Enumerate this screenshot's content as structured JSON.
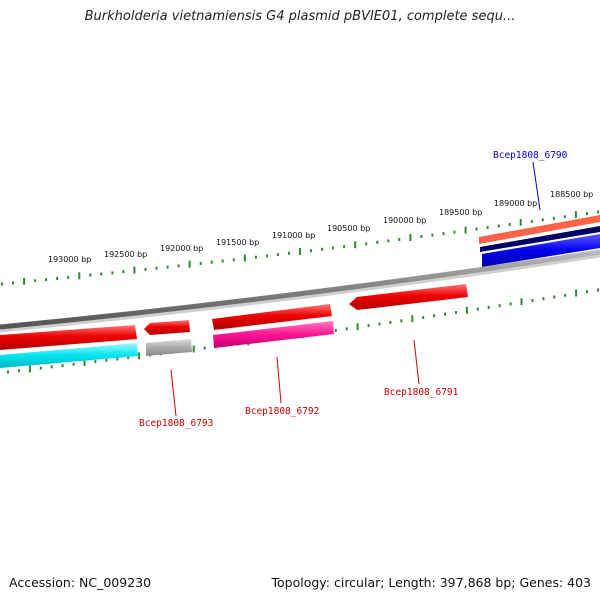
{
  "title": "Burkholderia vietnamiensis G4 plasmid pBVIE01, complete sequ...",
  "footer": {
    "accession": "Accession: NC_009230",
    "topology": "Topology: circular; Length: 397,868 bp; Genes: 403"
  },
  "tick_labels": [
    "193000 bp",
    "192500 bp",
    "192000 bp",
    "191500 bp",
    "191000 bp",
    "190500 bp",
    "190000 bp",
    "189500 bp",
    "189000 bp",
    "188500 bp"
  ],
  "gene_labels": [
    {
      "name": "Bcep1808_6790",
      "color": "#0000cc"
    },
    {
      "name": "Bcep1808_6791",
      "color": "#cc0000"
    },
    {
      "name": "Bcep1808_6792",
      "color": "#cc0000"
    },
    {
      "name": "Bcep1808_6793",
      "color": "#cc0000"
    }
  ],
  "colors": {
    "backbone": "#808080",
    "cds": "#ee0000",
    "gene_highlight": "#ff6666",
    "rna_cyan": "#00e5ee",
    "pink": "#ff1493",
    "grey_feature": "#aaaaaa",
    "blue": "#0000ee",
    "navy": "#000066",
    "salmon": "#ff6347",
    "ticks": "#2e8b2e"
  }
}
